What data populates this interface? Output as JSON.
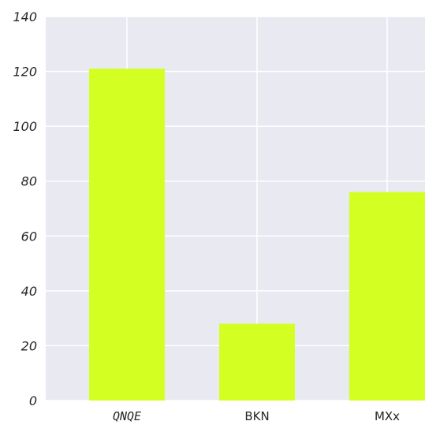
{
  "chart_data": {
    "type": "bar",
    "title": "",
    "xlabel": "",
    "ylabel": "",
    "categories": [
      "QNQE",
      "BKN",
      "MXx"
    ],
    "values": [
      121,
      28,
      76
    ],
    "ylim": [
      0,
      140
    ],
    "yticks": [
      "0",
      "20",
      "40",
      "60",
      "80",
      "100",
      "120",
      "140"
    ],
    "grid": true,
    "colors": {
      "bar": "#d4ff22",
      "background": "#e8e9f1",
      "grid": "#ffffff",
      "text": "#262626"
    }
  }
}
